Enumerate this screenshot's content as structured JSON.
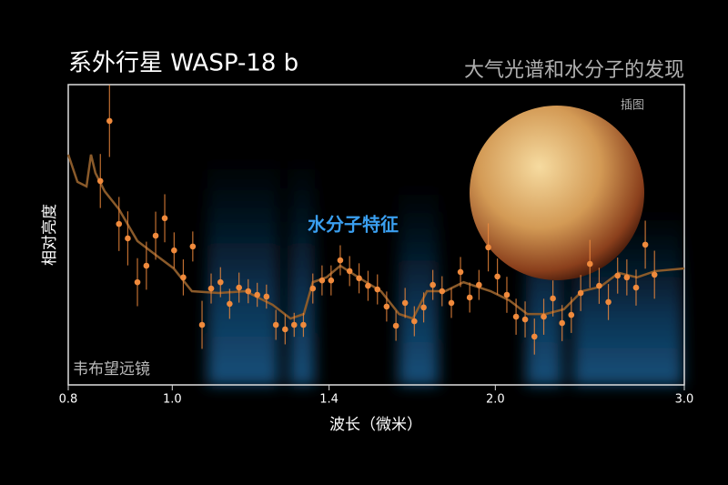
{
  "chart_data": {
    "type": "scatter",
    "title": "系外行星 WASP-18 b",
    "subtitle": "大气光谱和水分子的发现",
    "inset_label": "插图",
    "annotation": "水分子特征",
    "credit": "韦布望远镜",
    "xlabel": "波长（微米）",
    "ylabel": "相对亮度",
    "xlim": [
      0.8,
      3.0
    ],
    "xscale": "log",
    "xticks": [
      0.8,
      {
        "value": 1,
        "label": "1.0"
      },
      1.4,
      {
        "value": 2,
        "label": "2.0"
      },
      {
        "value": 3,
        "label": "3.0"
      }
    ],
    "ylim": [
      0,
      100
    ],
    "series": [
      {
        "color": "#f08a3c",
        "x": [
          0.857,
          0.874,
          0.892,
          0.909,
          0.928,
          0.946,
          0.965,
          0.984,
          1.004,
          1.024,
          1.045,
          1.066,
          1.087,
          1.109,
          1.131,
          1.154,
          1.177,
          1.2,
          1.224,
          1.249,
          1.274,
          1.299,
          1.325,
          1.352,
          1.379,
          1.406,
          1.434,
          1.463,
          1.493,
          1.522,
          1.553,
          1.584,
          1.616,
          1.648,
          1.681,
          1.715,
          1.749,
          1.784,
          1.82,
          1.856,
          1.893,
          1.931,
          1.97,
          2.009,
          2.05,
          2.091,
          2.132,
          2.175,
          2.219,
          2.263,
          2.308,
          2.354,
          2.402,
          2.45,
          2.499,
          2.549,
          2.6,
          2.652,
          2.705,
          2.759,
          2.814
        ],
        "values": [
          67.9,
          87.9,
          53.6,
          48.8,
          34.2,
          39.7,
          49.7,
          55.5,
          44.8,
          35.8,
          46.1,
          20.0,
          32.1,
          34.2,
          27.0,
          32.4,
          31.2,
          30.0,
          29.4,
          20.0,
          18.5,
          20.0,
          20.0,
          32.1,
          34.8,
          34.8,
          41.5,
          37.9,
          35.5,
          33.0,
          31.8,
          26.1,
          19.7,
          27.3,
          21.2,
          25.8,
          33.3,
          31.2,
          27.3,
          37.6,
          29.1,
          33.3,
          45.8,
          36.1,
          30.0,
          22.7,
          21.8,
          16.1,
          22.7,
          28.8,
          20.6,
          23.3,
          30.6,
          40.3,
          33.0,
          27.6,
          36.4,
          35.8,
          32.4,
          46.7,
          36.7
        ],
        "errors": [
          9,
          12,
          9,
          9,
          8,
          8,
          8,
          8,
          6,
          6,
          5,
          8,
          5,
          5,
          5,
          5,
          4,
          4,
          4,
          5,
          5,
          4,
          4,
          5,
          5,
          5,
          5,
          5,
          5,
          5,
          5,
          5,
          5,
          5,
          5,
          5,
          5,
          5,
          5,
          5,
          5,
          5,
          8,
          6,
          6,
          6,
          6,
          6,
          6,
          6,
          6,
          6,
          6,
          8,
          6,
          6,
          6,
          6,
          6,
          8,
          8
        ]
      },
      {
        "color": "#8a5a2a",
        "x": [
          0.8,
          0.816,
          0.832,
          0.84,
          0.848,
          0.865,
          0.892,
          0.928,
          0.965,
          1.003,
          1.043,
          1.105,
          1.17,
          1.24,
          1.289,
          1.326,
          1.352,
          1.392,
          1.434,
          1.491,
          1.565,
          1.627,
          1.676,
          1.727,
          1.796,
          1.868,
          1.98,
          2.06,
          2.142,
          2.228,
          2.317,
          2.409,
          2.506,
          2.606,
          2.71,
          2.818,
          3.0
        ],
        "values": [
          76.7,
          67.6,
          66.1,
          76.7,
          70.6,
          64.5,
          58.5,
          47.9,
          43.3,
          38.8,
          31.2,
          30.6,
          31.2,
          26.7,
          22.1,
          23.6,
          34.2,
          35.8,
          39.7,
          35.8,
          31.2,
          23.6,
          22.1,
          31.2,
          31.2,
          34.2,
          31.2,
          28.2,
          23.6,
          23.6,
          25.2,
          31.2,
          32.7,
          37.3,
          35.8,
          37.9,
          38.8
        ]
      }
    ]
  }
}
